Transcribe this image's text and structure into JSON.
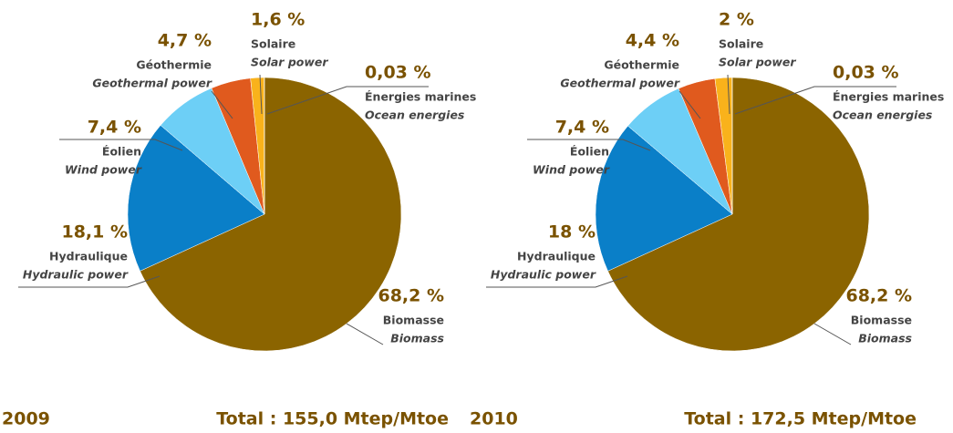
{
  "chart_data": [
    {
      "type": "pie",
      "year": "2009",
      "total": "Total : 155,0 Mtep/Mtoe",
      "categories": [
        "Biomasse",
        "Hydraulique",
        "Éolien",
        "Géothermie",
        "Solaire",
        "Énergies marines"
      ],
      "categories_en": [
        "Biomass",
        "Hydraulic power",
        "Wind power",
        "Geothermal power",
        "Solar power",
        "Ocean energies"
      ],
      "values": [
        68.2,
        18.1,
        7.4,
        4.7,
        1.6,
        0.03
      ],
      "value_labels": [
        "68,2 %",
        "18,1 %",
        "7,4 %",
        "4,7 %",
        "1,6 %",
        "0,03 %"
      ],
      "colors": [
        "#8b6400",
        "#0a7fc8",
        "#6dcff6",
        "#e05a1e",
        "#f9b21b",
        "#2a9d9a"
      ]
    },
    {
      "type": "pie",
      "year": "2010",
      "total": "Total : 172,5 Mtep/Mtoe",
      "categories": [
        "Biomasse",
        "Hydraulique",
        "Éolien",
        "Géothermie",
        "Solaire",
        "Énergies marines"
      ],
      "categories_en": [
        "Biomass",
        "Hydraulic power",
        "Wind power",
        "Geothermal power",
        "Solar power",
        "Ocean energies"
      ],
      "values": [
        68.2,
        18,
        7.4,
        4.4,
        2,
        0.03
      ],
      "value_labels": [
        "68,2 %",
        "18 %",
        "7,4 %",
        "4,4 %",
        "2 %",
        "0,03 %"
      ],
      "colors": [
        "#8b6400",
        "#0a7fc8",
        "#6dcff6",
        "#e05a1e",
        "#f9b21b",
        "#2a9d9a"
      ]
    }
  ]
}
